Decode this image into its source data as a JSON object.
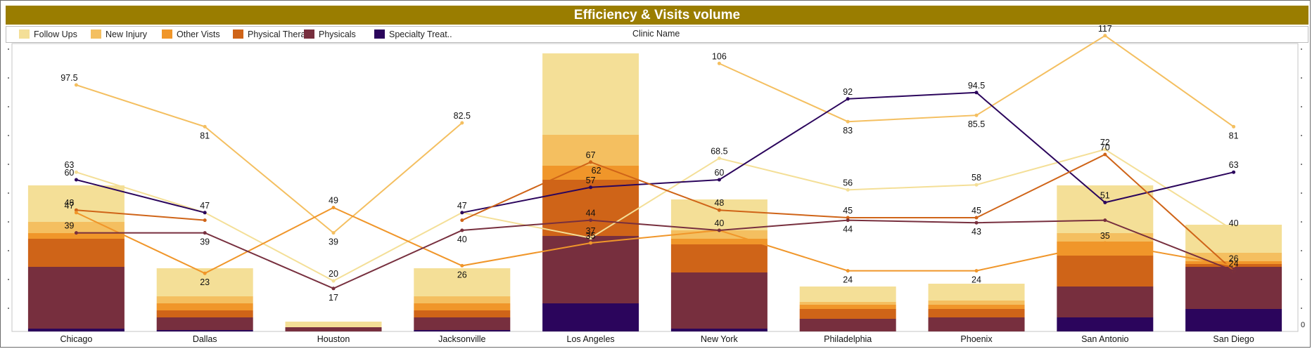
{
  "title": "Efficiency & Visits volume",
  "x_axis_title": "Clinic Name",
  "right_axis_zero": "0",
  "legend": [
    {
      "label": "Follow Ups",
      "color": "#f4df97"
    },
    {
      "label": "New Injury",
      "color": "#f4bf60"
    },
    {
      "label": "Other Vists",
      "color": "#f0962a"
    },
    {
      "label": "Physical Thera..",
      "color": "#cf6418"
    },
    {
      "label": "Physicals",
      "color": "#772f3e"
    },
    {
      "label": "Specialty Treat..",
      "color": "#2b055c"
    }
  ],
  "chart_data": {
    "type": "bar",
    "title": "Efficiency & Visits volume",
    "xlabel": "Clinic Name",
    "categories": [
      "Chicago",
      "Dallas",
      "Houston",
      "Jacksonville",
      "Los Angeles",
      "New York",
      "Philadelphia",
      "Phoenix",
      "San Antonio",
      "San Diego"
    ],
    "bar_series": [
      {
        "name": "Specialty Treat..",
        "color": "#2b055c",
        "values": [
          1,
          0.5,
          0,
          0.5,
          10,
          1,
          0,
          0,
          5,
          8
        ]
      },
      {
        "name": "Physicals",
        "color": "#772f3e",
        "values": [
          22,
          4.5,
          1.5,
          4.5,
          24,
          20,
          4.5,
          5,
          11,
          15
        ]
      },
      {
        "name": "Physical Thera..",
        "color": "#cf6418",
        "values": [
          10,
          2.5,
          0,
          2.5,
          20,
          10,
          3.5,
          3,
          11,
          1
        ]
      },
      {
        "name": "Other Vists",
        "color": "#f0962a",
        "values": [
          2,
          2.5,
          0,
          2.5,
          5,
          2,
          1.5,
          1.5,
          5,
          1
        ]
      },
      {
        "name": "New Injury",
        "color": "#f4bf60",
        "values": [
          4,
          2.5,
          0,
          2.5,
          11,
          3,
          1,
          1.5,
          3,
          3
        ]
      },
      {
        "name": "Follow Ups",
        "color": "#f4df97",
        "values": [
          13,
          10,
          2,
          10,
          29,
          11,
          5.5,
          6,
          17,
          10
        ]
      }
    ],
    "line_series": [
      {
        "name": "New Injury",
        "color": "#f4bf60",
        "values": [
          97.5,
          81,
          39,
          82.5,
          null,
          106,
          83,
          85.5,
          117,
          81
        ],
        "labels": [
          "97.5",
          "81",
          "39",
          "82.5",
          "",
          "106",
          "83",
          "85.5",
          "117",
          "81"
        ]
      },
      {
        "name": "Follow Ups",
        "color": "#f4df97",
        "values": [
          63,
          47,
          20,
          47,
          37,
          68.5,
          56,
          58,
          72,
          40
        ],
        "labels": [
          "63",
          "47",
          "20",
          "47",
          "37",
          "68.5",
          "56",
          "58",
          "72",
          "40"
        ]
      },
      {
        "name": "Specialty Treat..",
        "color": "#2b055c",
        "values": [
          60,
          47,
          null,
          47,
          57,
          60,
          92,
          94.5,
          51,
          63
        ],
        "labels": [
          "60",
          "",
          "",
          "",
          "57",
          "60",
          "92",
          "94.5",
          "51",
          "63"
        ]
      },
      {
        "name": "Physical Thera..",
        "color": "#cf6418",
        "values": [
          48,
          44,
          null,
          44,
          67,
          48,
          45,
          45,
          70,
          24
        ],
        "labels": [
          "48",
          "",
          "",
          "",
          "67",
          "48",
          "45",
          "45",
          "70",
          "24"
        ]
      },
      {
        "name": "Other Vists",
        "color": "#f0962a",
        "values": [
          47,
          23,
          49,
          26,
          35,
          40,
          24,
          24,
          35,
          26
        ],
        "labels": [
          "47",
          "23",
          "49",
          "26",
          "35",
          "",
          "24",
          "24",
          "35",
          "26"
        ]
      },
      {
        "name": "Physicals",
        "color": "#772f3e",
        "values": [
          39,
          39,
          17,
          40,
          44,
          40,
          44,
          43,
          44,
          24
        ],
        "labels": [
          "39",
          "39",
          "17",
          "40",
          "44",
          "40",
          "44",
          "43",
          "",
          ""
        ]
      }
    ],
    "extra_labels": [
      {
        "category": "Los Angeles",
        "text": "62",
        "value": 62
      }
    ],
    "ylim": [
      0,
      100
    ],
    "grid": false,
    "legend_position": "top"
  }
}
